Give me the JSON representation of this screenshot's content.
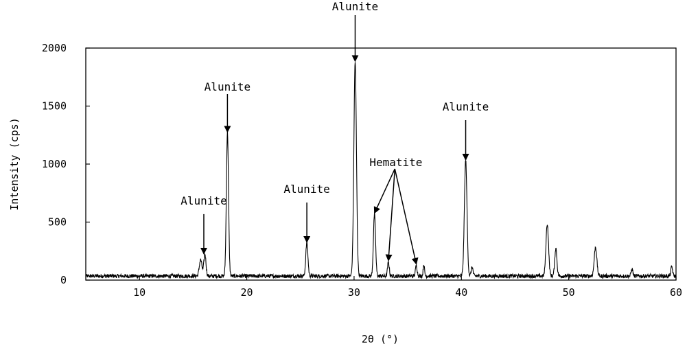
{
  "chart_data": {
    "type": "line",
    "title": "",
    "xlabel": "2θ (°)",
    "ylabel": "Intensity (cps)",
    "xlim": [
      5,
      60
    ],
    "ylim": [
      0,
      2000
    ],
    "xticks": [
      10,
      20,
      30,
      40,
      50,
      60
    ],
    "yticks": [
      0,
      500,
      1000,
      1500,
      2000
    ],
    "grid": false,
    "legend": "none",
    "line_color": "#000000",
    "baseline": 35,
    "peaks": [
      {
        "x": 15.7,
        "y": 140,
        "w": 0.12
      },
      {
        "x": 16.1,
        "y": 190,
        "w": 0.1
      },
      {
        "x": 18.2,
        "y": 1240,
        "w": 0.1
      },
      {
        "x": 25.6,
        "y": 290,
        "w": 0.1
      },
      {
        "x": 30.1,
        "y": 1850,
        "w": 0.12
      },
      {
        "x": 31.9,
        "y": 530,
        "w": 0.1
      },
      {
        "x": 33.2,
        "y": 120,
        "w": 0.08
      },
      {
        "x": 35.8,
        "y": 90,
        "w": 0.08
      },
      {
        "x": 36.5,
        "y": 100,
        "w": 0.06
      },
      {
        "x": 40.4,
        "y": 1000,
        "w": 0.12
      },
      {
        "x": 41.0,
        "y": 80,
        "w": 0.08
      },
      {
        "x": 48.0,
        "y": 450,
        "w": 0.12
      },
      {
        "x": 48.8,
        "y": 240,
        "w": 0.1
      },
      {
        "x": 52.5,
        "y": 250,
        "w": 0.12
      },
      {
        "x": 55.9,
        "y": 60,
        "w": 0.08
      },
      {
        "x": 59.6,
        "y": 80,
        "w": 0.08
      }
    ],
    "annotations": [
      {
        "label": "Alunite",
        "x": 16.0,
        "y": 190
      },
      {
        "label": "Alunite",
        "x": 18.2,
        "y": 1240
      },
      {
        "label": "Alunite",
        "x": 25.6,
        "y": 290
      },
      {
        "label": "Alunite",
        "x": 30.1,
        "y": 1850
      },
      {
        "label": "Hematite",
        "x": 31.9,
        "y": 530
      },
      {
        "label": "Alunite",
        "x": 40.4,
        "y": 1000
      }
    ],
    "hematite_extra_targets": [
      {
        "x": 33.2,
        "y": 120
      },
      {
        "x": 35.8,
        "y": 90
      }
    ]
  }
}
